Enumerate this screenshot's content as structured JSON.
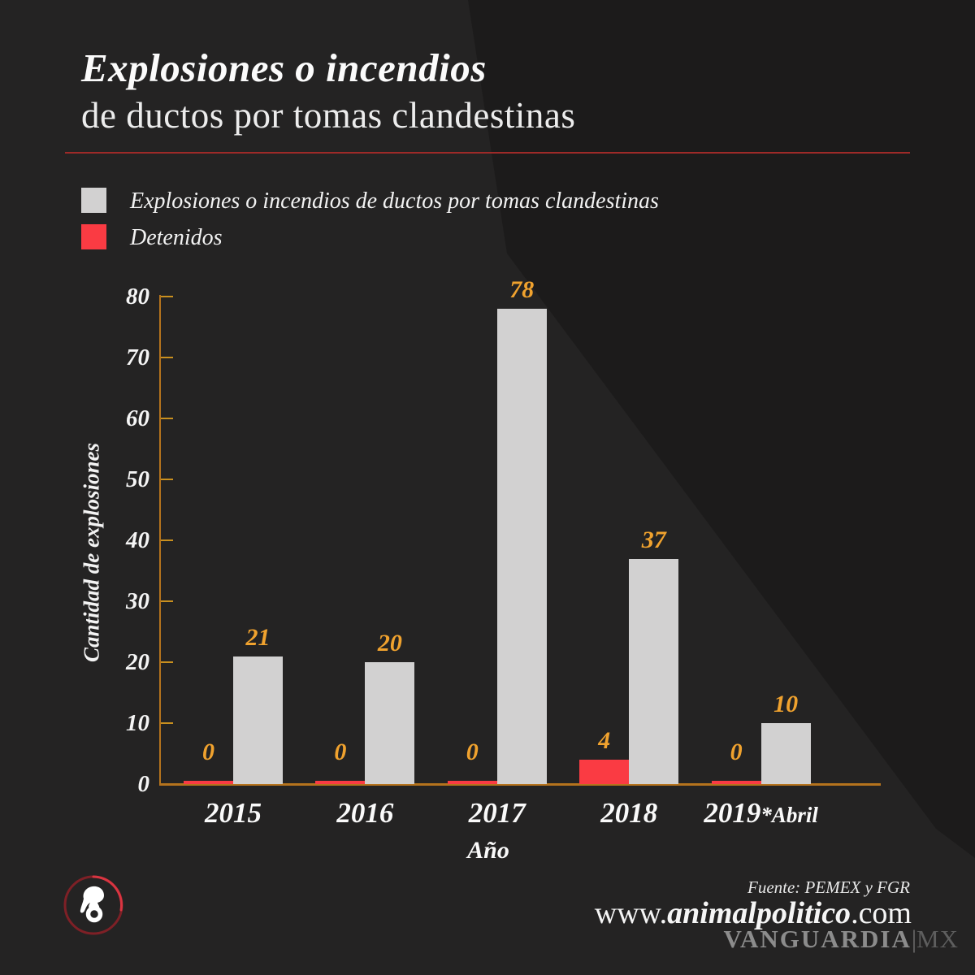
{
  "header": {
    "title_line1": "Explosiones o incendios",
    "title_line2": "de ductos por tomas clandestinas"
  },
  "legend": [
    {
      "label": "Explosiones o incendios de ductos por tomas clandestinas",
      "color": "#d2d1d1"
    },
    {
      "label": "Detenidos",
      "color": "#fa3b43"
    }
  ],
  "chart_data": {
    "type": "bar",
    "categories": [
      {
        "label": "2015",
        "suffix": ""
      },
      {
        "label": "2016",
        "suffix": ""
      },
      {
        "label": "2017",
        "suffix": ""
      },
      {
        "label": "2018",
        "suffix": ""
      },
      {
        "label": "2019",
        "suffix": "*Abril"
      }
    ],
    "series": [
      {
        "name": "Explosiones o incendios de ductos por tomas clandestinas",
        "color": "#d2d1d1",
        "values": [
          21,
          20,
          78,
          37,
          10
        ]
      },
      {
        "name": "Detenidos",
        "color": "#fa3b43",
        "values": [
          0,
          0,
          0,
          4,
          0
        ]
      }
    ],
    "title": "Explosiones o incendios de ductos por tomas clandestinas",
    "xlabel": "Año",
    "ylabel": "Cantidad de explosiones",
    "ylim": [
      0,
      80
    ],
    "yticks": [
      0,
      10,
      20,
      30,
      40,
      50,
      60,
      70,
      80
    ],
    "grid": "off",
    "legend_position": "top-left",
    "axis_color": "#b5731d",
    "tick_color": "#c9901f",
    "value_label_color": "#f0a22e"
  },
  "footer": {
    "source": "Fuente: PEMEX y FGR",
    "website": {
      "prefix": "www.",
      "brand": "animalpolitico",
      "suffix": ".com"
    },
    "watermark": {
      "name": "VANGUARDIA",
      "separator": "|",
      "region": "MX"
    },
    "logo": "animal-politico-logo"
  }
}
